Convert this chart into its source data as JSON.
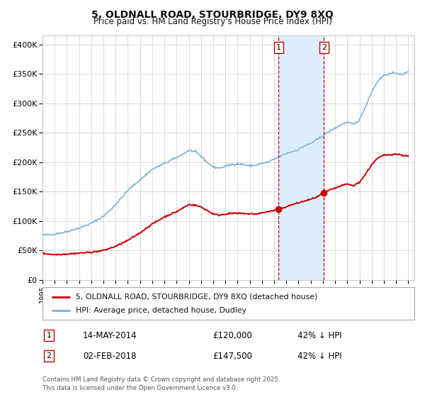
{
  "title1": "5, OLDNALL ROAD, STOURBRIDGE, DY9 8XQ",
  "title2": "Price paid vs. HM Land Registry's House Price Index (HPI)",
  "ylabel_ticks": [
    "£0",
    "£50K",
    "£100K",
    "£150K",
    "£200K",
    "£250K",
    "£300K",
    "£350K",
    "£400K"
  ],
  "ytick_vals": [
    0,
    50000,
    100000,
    150000,
    200000,
    250000,
    300000,
    350000,
    400000
  ],
  "xlim_start": 1995.0,
  "xlim_end": 2025.5,
  "ylim": [
    0,
    415000
  ],
  "sale1_year": 2014.37,
  "sale1_price": 120000,
  "sale1_label": "14-MAY-2014",
  "sale1_pct": "42% ↓ HPI",
  "sale2_year": 2018.09,
  "sale2_price": 147500,
  "sale2_label": "02-FEB-2018",
  "sale2_pct": "42% ↓ HPI",
  "legend_red": "5, OLDNALL ROAD, STOURBRIDGE, DY9 8XQ (detached house)",
  "legend_blue": "HPI: Average price, detached house, Dudley",
  "footer": "Contains HM Land Registry data © Crown copyright and database right 2025.\nThis data is licensed under the Open Government Licence v3.0.",
  "red_color": "#cc0000",
  "blue_color": "#7bafd4",
  "shade_color": "#ddeeff",
  "bg_color": "#ffffff",
  "grid_color": "#cccccc",
  "hpi_years": [
    1995,
    1996,
    1997,
    1998,
    1999,
    2000,
    2001,
    2002,
    2003,
    2004,
    2005,
    2006,
    2007,
    2007.5,
    2008,
    2008.5,
    2009,
    2009.5,
    2010,
    2010.5,
    2011,
    2011.5,
    2012,
    2012.5,
    2013,
    2013.5,
    2014,
    2014.5,
    2015,
    2015.5,
    2016,
    2016.5,
    2017,
    2017.5,
    2018,
    2018.5,
    2019,
    2019.5,
    2020,
    2020.5,
    2021,
    2021.5,
    2022,
    2022.5,
    2023,
    2023.5,
    2024,
    2024.5,
    2025
  ],
  "hpi_vals": [
    76000,
    78000,
    82000,
    88000,
    96000,
    108000,
    128000,
    152000,
    170000,
    188000,
    198000,
    208000,
    220000,
    218000,
    210000,
    200000,
    192000,
    190000,
    193000,
    196000,
    197000,
    196000,
    194000,
    195000,
    198000,
    200000,
    205000,
    210000,
    215000,
    218000,
    222000,
    228000,
    232000,
    238000,
    245000,
    252000,
    258000,
    264000,
    268000,
    264000,
    272000,
    295000,
    320000,
    338000,
    348000,
    350000,
    352000,
    348000,
    355000
  ],
  "pp_years": [
    1995,
    1996,
    1997,
    1998,
    1999,
    2000,
    2001,
    2002,
    2003,
    2004,
    2005,
    2006,
    2007,
    2007.5,
    2008,
    2008.5,
    2009,
    2009.5,
    2010,
    2010.5,
    2011,
    2011.5,
    2012,
    2012.5,
    2013,
    2013.5,
    2014.0,
    2014.37,
    2014.8,
    2015.5,
    2016,
    2016.5,
    2017,
    2017.5,
    2018.09,
    2018.5,
    2019,
    2019.5,
    2020,
    2020.5,
    2021,
    2021.5,
    2022,
    2022.5,
    2023,
    2023.5,
    2024,
    2024.5,
    2025
  ],
  "pp_vals": [
    45000,
    43000,
    44000,
    45500,
    47000,
    50000,
    57000,
    67000,
    80000,
    95000,
    107000,
    116000,
    128000,
    127000,
    124000,
    118000,
    112000,
    110000,
    112000,
    113000,
    113000,
    113000,
    112000,
    112000,
    114000,
    116000,
    118000,
    120000,
    123000,
    128000,
    131000,
    134000,
    137000,
    141000,
    147500,
    152000,
    156000,
    160000,
    163000,
    160000,
    166000,
    180000,
    196000,
    207000,
    212000,
    213000,
    214000,
    212000,
    210000
  ]
}
